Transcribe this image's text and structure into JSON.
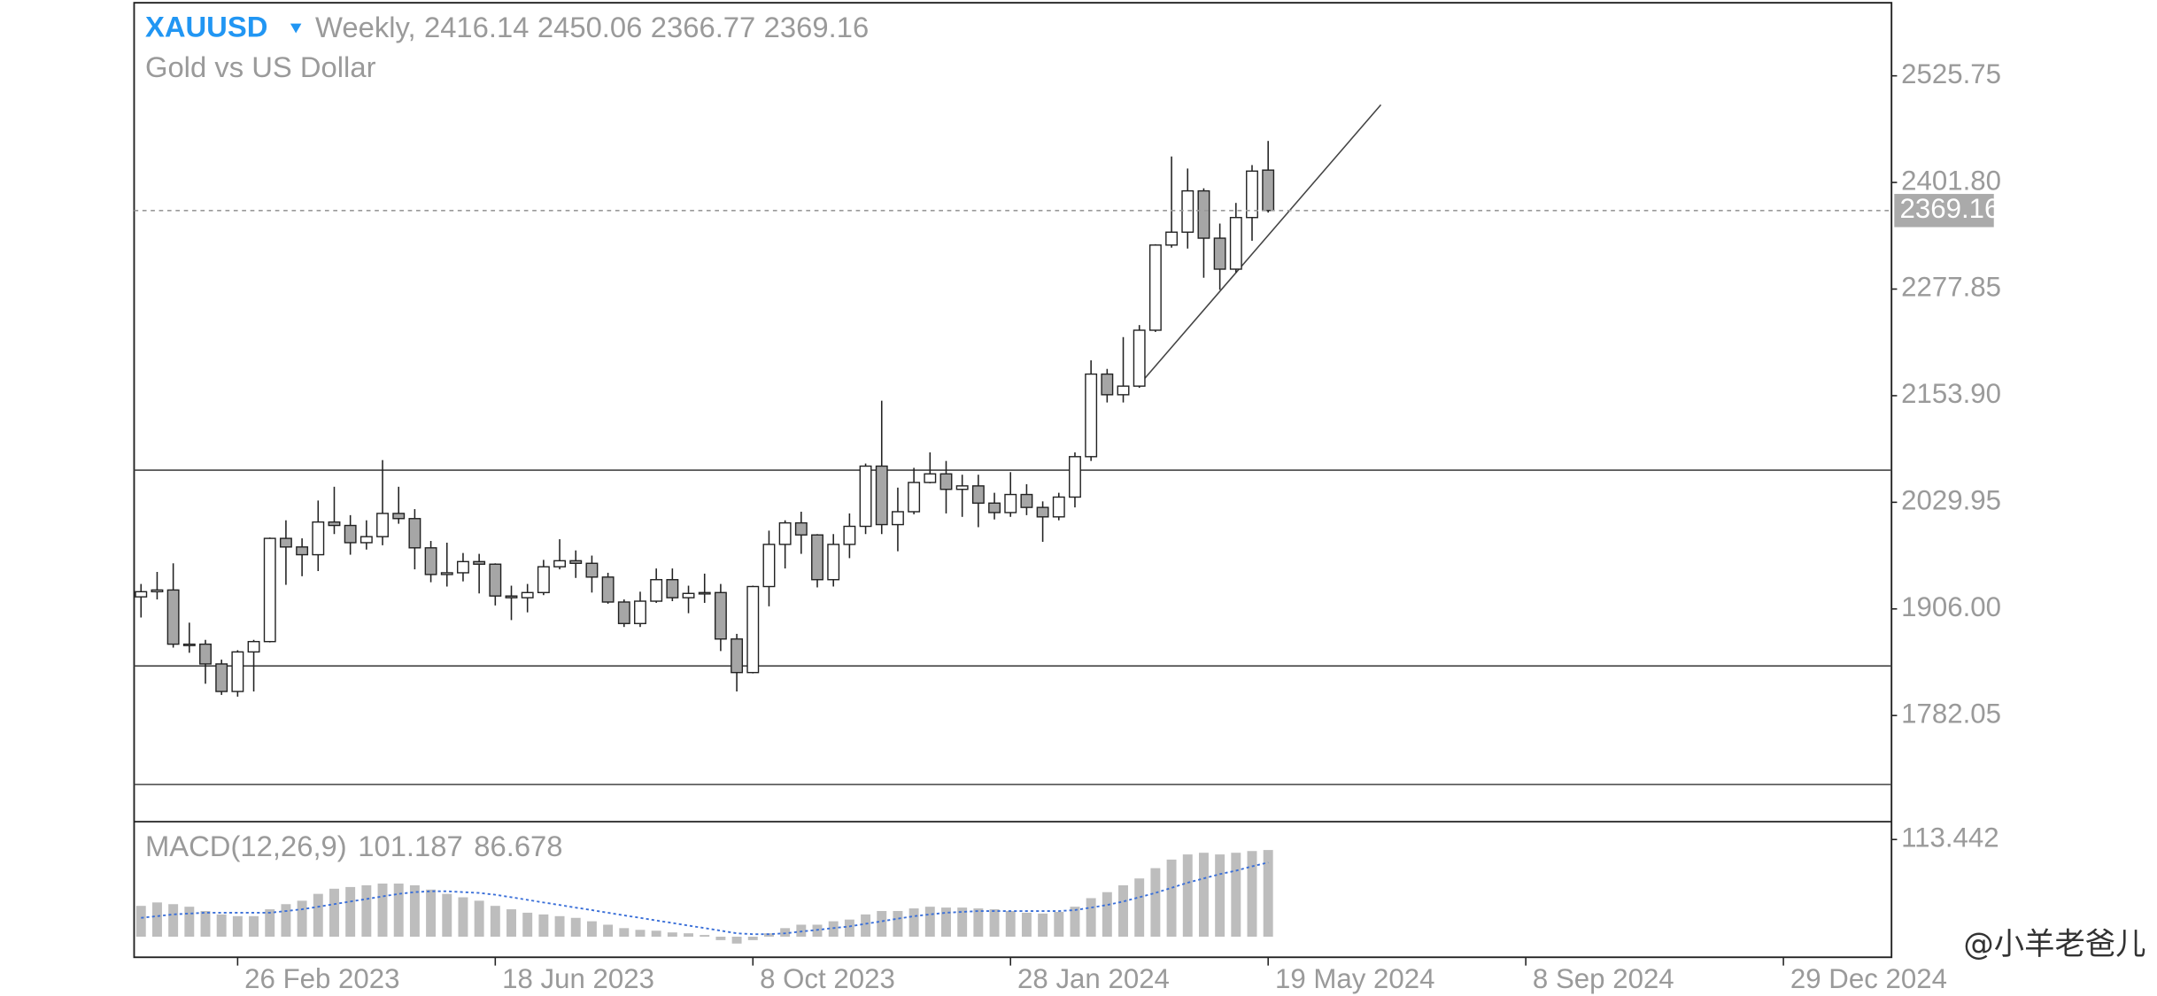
{
  "chart_data": [
    {
      "type": "candlestick",
      "title": "XAUUSD",
      "timeframe": "Weekly,",
      "subtitle": "Gold vs US Dollar",
      "x": [
        "2023-01-15",
        "2023-01-22",
        "2023-01-29",
        "2023-02-05",
        "2023-02-12",
        "2023-02-19",
        "2023-02-26",
        "2023-03-05",
        "2023-03-12",
        "2023-03-19",
        "2023-03-26",
        "2023-04-02",
        "2023-04-09",
        "2023-04-16",
        "2023-04-23",
        "2023-04-30",
        "2023-05-07",
        "2023-05-14",
        "2023-05-21",
        "2023-05-28",
        "2023-06-04",
        "2023-06-11",
        "2023-06-18",
        "2023-06-25",
        "2023-07-02",
        "2023-07-09",
        "2023-07-16",
        "2023-07-23",
        "2023-07-30",
        "2023-08-06",
        "2023-08-13",
        "2023-08-20",
        "2023-08-27",
        "2023-09-03",
        "2023-09-10",
        "2023-09-17",
        "2023-09-24",
        "2023-10-01",
        "2023-10-08",
        "2023-10-15",
        "2023-10-22",
        "2023-10-29",
        "2023-11-05",
        "2023-11-12",
        "2023-11-19",
        "2023-11-26",
        "2023-12-03",
        "2023-12-10",
        "2023-12-17",
        "2023-12-24",
        "2023-12-31",
        "2024-01-07",
        "2024-01-14",
        "2024-01-21",
        "2024-01-28",
        "2024-02-04",
        "2024-02-11",
        "2024-02-18",
        "2024-02-25",
        "2024-03-03",
        "2024-03-10",
        "2024-03-17",
        "2024-03-24",
        "2024-03-31",
        "2024-04-07",
        "2024-04-14",
        "2024-04-21",
        "2024-04-28",
        "2024-05-05",
        "2024-05-12",
        "2024-05-19"
      ],
      "open": [
        1920,
        1926,
        1928,
        1865,
        1865,
        1842,
        1810,
        1856,
        1868,
        1988,
        1978,
        1969,
        2007,
        2003,
        1983,
        1990,
        2017,
        2011,
        1977,
        1946,
        1948,
        1961,
        1958,
        1921,
        1919,
        1925,
        1955,
        1962,
        1959,
        1943,
        1914,
        1889,
        1915,
        1940,
        1919,
        1924,
        1925,
        1871,
        1832,
        1932,
        1981,
        2006,
        1992,
        1940,
        1981,
        2002,
        2072,
        2004,
        2019,
        2053,
        2063,
        2045,
        2049,
        2029,
        2018,
        2039,
        2024,
        2013,
        2036,
        2083,
        2179,
        2155,
        2165,
        2230,
        2329,
        2344,
        2392,
        2337,
        2301,
        2361,
        2416.14
      ],
      "high": [
        1935,
        1949,
        1959,
        1890,
        1870,
        1847,
        1858,
        1870,
        1989,
        2009,
        1988,
        2032,
        2048,
        2015,
        2009,
        2079,
        2048,
        2022,
        1985,
        1983,
        1971,
        1970,
        1959,
        1933,
        1935,
        1963,
        1987,
        1974,
        1968,
        1948,
        1917,
        1926,
        1953,
        1953,
        1933,
        1947,
        1935,
        1877,
        1933,
        1997,
        2009,
        2019,
        1993,
        1993,
        2017,
        2075,
        2148,
        2047,
        2070,
        2088,
        2078,
        2062,
        2062,
        2041,
        2065,
        2051,
        2031,
        2041,
        2088,
        2195,
        2185,
        2222,
        2236,
        2330,
        2432,
        2418,
        2395,
        2354,
        2378,
        2422,
        2450.06
      ],
      "low": [
        1896,
        1917,
        1861,
        1855,
        1819,
        1806,
        1804,
        1810,
        1867,
        1934,
        1944,
        1950,
        1993,
        1969,
        1975,
        1980,
        2005,
        1952,
        1937,
        1932,
        1938,
        1924,
        1910,
        1893,
        1902,
        1922,
        1952,
        1942,
        1925,
        1912,
        1885,
        1885,
        1913,
        1915,
        1901,
        1913,
        1857,
        1810,
        1831,
        1909,
        1953,
        1970,
        1931,
        1932,
        1965,
        1993,
        1993,
        1973,
        2016,
        2052,
        2017,
        2013,
        2001,
        2010,
        2013,
        2015,
        1984,
        2009,
        2024,
        2078,
        2146,
        2146,
        2163,
        2228,
        2326,
        2325,
        2291,
        2277,
        2297,
        2334,
        2366.77
      ],
      "close": [
        1926,
        1928,
        1865,
        1865,
        1842,
        1810,
        1856,
        1868,
        1988,
        1978,
        1969,
        2007,
        2003,
        1983,
        1990,
        2017,
        2011,
        1977,
        1946,
        1948,
        1961,
        1958,
        1921,
        1919,
        1925,
        1955,
        1962,
        1959,
        1943,
        1914,
        1889,
        1915,
        1940,
        1919,
        1924,
        1925,
        1871,
        1832,
        1932,
        1981,
        2006,
        1992,
        1940,
        1981,
        2002,
        2072,
        2004,
        2019,
        2053,
        2063,
        2045,
        2049,
        2029,
        2018,
        2039,
        2024,
        2013,
        2036,
        2083,
        2179,
        2155,
        2165,
        2230,
        2329,
        2344,
        2392,
        2337,
        2301,
        2361,
        2415,
        2369.16
      ],
      "up_color": "#ffffff",
      "down_color": "#a6a6a6",
      "title_color": "#2196f3",
      "last_price_color": "#aaaaaa",
      "xlim": [
        "2023-01-12",
        "2025-02-14"
      ],
      "xticks": [
        {
          "value": "2023-02-26",
          "label": "26 Feb 2023"
        },
        {
          "value": "2023-06-18",
          "label": "18 Jun 2023"
        },
        {
          "value": "2023-10-08",
          "label": "8 Oct 2023"
        },
        {
          "value": "2024-01-28",
          "label": "28 Jan 2024"
        },
        {
          "value": "2024-05-19",
          "label": "19 May 2024"
        },
        {
          "value": "2024-09-08",
          "label": "8 Sep 2024"
        },
        {
          "value": "2024-12-29",
          "label": "29 Dec 2024"
        }
      ],
      "ylim": [
        1658.6,
        2610.7
      ],
      "yticks": [
        2525.75,
        {
          "value": 2401.8,
          "label": "2401.80"
        },
        2277.85,
        {
          "value": 2153.9,
          "label": "2153.90"
        },
        2029.95,
        {
          "value": 1906,
          "label": "1906.00"
        },
        1782.05
      ],
      "levels": [
        2067.3,
        1839.7,
        1701.8
      ],
      "trendline": {
        "x": [
          "2024-03-24",
          "2024-07-07"
        ],
        "y": [
          2166.7,
          2492.1
        ]
      },
      "watermark": "@小羊老爸儿"
    },
    {
      "type": "macd",
      "label": "MACD(12,26,9)",
      "bar_color": "#bdbdbd",
      "signal_color": "#3a6fd8",
      "values": [
        36,
        40,
        38,
        35,
        30,
        26,
        24,
        24,
        32,
        38,
        42,
        50,
        56,
        58,
        60,
        62,
        62,
        60,
        55,
        50,
        46,
        42,
        36,
        32,
        28,
        26,
        24,
        22,
        18,
        14,
        10,
        8,
        7,
        5,
        4,
        2,
        -4,
        -8,
        -4,
        4,
        10,
        14,
        14,
        18,
        20,
        26,
        30,
        30,
        33,
        35,
        34,
        34,
        33,
        32,
        30,
        28,
        27,
        29,
        35,
        45,
        52,
        60,
        68,
        80,
        90,
        96,
        98,
        96,
        98,
        100,
        101.187
      ],
      "signal": [
        22,
        24,
        26,
        27,
        28,
        28,
        28,
        28,
        28,
        30,
        32,
        35,
        38,
        41,
        44,
        47,
        50,
        52,
        53,
        53,
        52,
        51,
        49,
        46,
        43,
        40,
        37,
        34,
        31,
        28,
        25,
        22,
        19,
        16,
        13,
        10,
        7,
        4,
        3,
        3,
        4,
        6,
        8,
        10,
        12,
        15,
        18,
        21,
        24,
        26,
        28,
        29,
        30,
        30,
        30,
        30,
        30,
        30,
        31,
        34,
        37,
        41,
        46,
        51,
        57,
        63,
        68,
        73,
        77,
        82,
        86.678
      ],
      "ylim": [
        -24,
        131
      ],
      "yticks": [
        113.442
      ]
    }
  ]
}
